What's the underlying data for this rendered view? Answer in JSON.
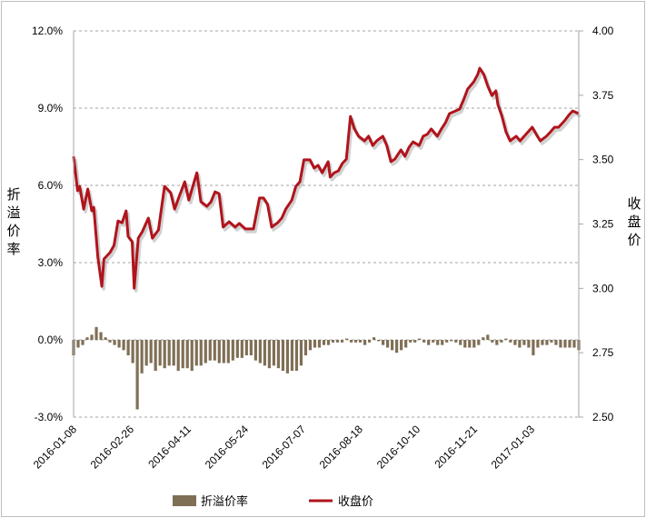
{
  "chart_data": {
    "type": "bar+line",
    "title": "",
    "left_axis": {
      "title": "折溢价率",
      "ticks": [
        "12.0%",
        "9.0%",
        "6.0%",
        "3.0%",
        "0.0%",
        "-3.0%"
      ],
      "range": [
        -3,
        12
      ]
    },
    "right_axis": {
      "title": "收盘价",
      "ticks": [
        "4.00",
        "3.75",
        "3.50",
        "3.25",
        "3.00",
        "2.75",
        "2.50"
      ],
      "range": [
        2.5,
        4.0
      ]
    },
    "x_axis": {
      "tick_labels": [
        "2016-01-08",
        "2016-02-26",
        "2016-04-11",
        "2016-05-24",
        "2016-07-07",
        "2016-08-18",
        "2016-10-10",
        "2016-11-21",
        "2017-01-03"
      ],
      "tick_days": [
        0,
        28.3,
        56.6,
        85,
        113.3,
        141.6,
        170,
        198.3,
        226.6
      ],
      "day_range": [
        0,
        250
      ]
    },
    "grid": "horizontal dashed",
    "legend": {
      "position": "bottom",
      "entries": [
        "折溢价率",
        "收盘价"
      ]
    },
    "colors": {
      "premium": "#7f6f55",
      "price": "#b0141c",
      "grid": "#a6a6a6"
    },
    "series": [
      {
        "name": "折溢价率",
        "type": "bar",
        "unit": "%",
        "values": [
          -0.6,
          -0.3,
          -0.2,
          0.1,
          0.2,
          0.5,
          0.3,
          0.1,
          -0.1,
          -0.2,
          -0.3,
          -0.4,
          -0.6,
          -0.9,
          -2.7,
          -1.3,
          -1.0,
          -0.9,
          -1.2,
          -1.0,
          -1.1,
          -1.0,
          -1.0,
          -1.2,
          -1.1,
          -1.1,
          -1.2,
          -1.0,
          -1.0,
          -0.9,
          -0.8,
          -0.8,
          -0.9,
          -0.9,
          -0.9,
          -0.8,
          -0.7,
          -0.7,
          -0.6,
          -0.6,
          -0.8,
          -0.9,
          -1.0,
          -1.1,
          -1.0,
          -1.1,
          -1.2,
          -1.3,
          -1.2,
          -1.2,
          -1.0,
          -0.6,
          -0.4,
          -0.3,
          -0.3,
          -0.2,
          -0.2,
          -0.1,
          -0.1,
          -0.1,
          0.05,
          -0.1,
          -0.1,
          -0.1,
          -0.2,
          -0.1,
          0.1,
          -0.05,
          -0.2,
          -0.3,
          -0.4,
          -0.5,
          -0.4,
          -0.3,
          -0.1,
          -0.1,
          0.05,
          -0.1,
          -0.2,
          -0.1,
          -0.2,
          -0.2,
          -0.1,
          -0.05,
          -0.1,
          -0.2,
          -0.3,
          -0.3,
          -0.3,
          -0.2,
          0.1,
          0.2,
          -0.1,
          -0.2,
          -0.1,
          0.05,
          -0.1,
          -0.2,
          -0.3,
          -0.2,
          -0.3,
          -0.6,
          -0.3,
          -0.2,
          -0.2,
          -0.1,
          -0.2,
          -0.3,
          -0.3,
          -0.3,
          -0.3,
          -0.4
        ]
      },
      {
        "name": "收盘价",
        "type": "line",
        "points": [
          [
            0,
            3.513
          ],
          [
            2,
            3.379
          ],
          [
            3,
            3.396
          ],
          [
            5,
            3.308
          ],
          [
            7,
            3.386
          ],
          [
            9,
            3.301
          ],
          [
            10,
            3.315
          ],
          [
            12,
            3.121
          ],
          [
            14,
            3.008
          ],
          [
            15,
            3.114
          ],
          [
            18,
            3.139
          ],
          [
            20,
            3.167
          ],
          [
            22,
            3.262
          ],
          [
            24,
            3.255
          ],
          [
            26,
            3.301
          ],
          [
            27,
            3.202
          ],
          [
            29,
            3.181
          ],
          [
            30,
            3.001
          ],
          [
            32,
            3.195
          ],
          [
            34,
            3.22
          ],
          [
            37,
            3.273
          ],
          [
            39,
            3.195
          ],
          [
            42,
            3.227
          ],
          [
            45,
            3.396
          ],
          [
            48,
            3.372
          ],
          [
            50,
            3.308
          ],
          [
            52,
            3.351
          ],
          [
            55,
            3.414
          ],
          [
            57,
            3.343
          ],
          [
            59,
            3.396
          ],
          [
            61,
            3.449
          ],
          [
            63,
            3.336
          ],
          [
            66,
            3.319
          ],
          [
            68,
            3.336
          ],
          [
            70,
            3.375
          ],
          [
            72,
            3.368
          ],
          [
            74,
            3.238
          ],
          [
            77,
            3.259
          ],
          [
            80,
            3.238
          ],
          [
            82,
            3.252
          ],
          [
            85,
            3.231
          ],
          [
            87,
            3.231
          ],
          [
            89,
            3.231
          ],
          [
            92,
            3.351
          ],
          [
            94,
            3.351
          ],
          [
            96,
            3.326
          ],
          [
            98,
            3.238
          ],
          [
            101,
            3.255
          ],
          [
            103,
            3.273
          ],
          [
            105,
            3.308
          ],
          [
            108,
            3.343
          ],
          [
            110,
            3.396
          ],
          [
            112,
            3.414
          ],
          [
            114,
            3.499
          ],
          [
            117,
            3.499
          ],
          [
            119,
            3.467
          ],
          [
            121,
            3.478
          ],
          [
            123,
            3.449
          ],
          [
            126,
            3.492
          ],
          [
            127,
            3.432
          ],
          [
            129,
            3.449
          ],
          [
            131,
            3.456
          ],
          [
            133,
            3.485
          ],
          [
            135,
            3.502
          ],
          [
            137,
            3.668
          ],
          [
            139,
            3.619
          ],
          [
            141,
            3.591
          ],
          [
            144,
            3.573
          ],
          [
            146,
            3.591
          ],
          [
            148,
            3.555
          ],
          [
            150,
            3.573
          ],
          [
            153,
            3.591
          ],
          [
            155,
            3.555
          ],
          [
            157,
            3.492
          ],
          [
            159,
            3.502
          ],
          [
            162,
            3.538
          ],
          [
            164,
            3.513
          ],
          [
            166,
            3.548
          ],
          [
            168,
            3.569
          ],
          [
            171,
            3.555
          ],
          [
            173,
            3.591
          ],
          [
            175,
            3.598
          ],
          [
            177,
            3.619
          ],
          [
            180,
            3.591
          ],
          [
            182,
            3.619
          ],
          [
            184,
            3.643
          ],
          [
            186,
            3.679
          ],
          [
            189,
            3.689
          ],
          [
            191,
            3.696
          ],
          [
            193,
            3.732
          ],
          [
            195,
            3.774
          ],
          [
            198,
            3.802
          ],
          [
            200,
            3.831
          ],
          [
            201,
            3.855
          ],
          [
            203,
            3.831
          ],
          [
            205,
            3.785
          ],
          [
            207,
            3.749
          ],
          [
            209,
            3.767
          ],
          [
            210,
            3.714
          ],
          [
            212,
            3.668
          ],
          [
            214,
            3.608
          ],
          [
            216,
            3.573
          ],
          [
            219,
            3.591
          ],
          [
            221,
            3.573
          ],
          [
            223,
            3.591
          ],
          [
            227,
            3.626
          ],
          [
            229,
            3.598
          ],
          [
            231,
            3.573
          ],
          [
            234,
            3.591
          ],
          [
            236,
            3.608
          ],
          [
            238,
            3.626
          ],
          [
            240,
            3.626
          ],
          [
            243,
            3.651
          ],
          [
            245,
            3.672
          ],
          [
            247,
            3.689
          ],
          [
            250,
            3.679
          ]
        ]
      }
    ]
  }
}
